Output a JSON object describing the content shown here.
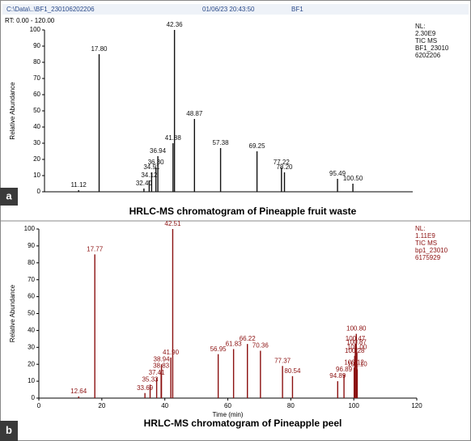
{
  "chart_data": [
    {
      "type": "spectrum",
      "panel": "a",
      "header": [
        "C:\\Data\\..\\BF1_230106202206",
        "01/06/23 20:43:50",
        "BF1"
      ],
      "range_label": "RT: 0.00 - 120.00",
      "y_label": "Relative Abundance",
      "info": [
        "NL:",
        "2.30E9",
        "TIC MS",
        "BF1_23010",
        "6202206"
      ],
      "caption": "HRLC-MS chromatogram of Pineapple fruit waste",
      "color": "#111111",
      "xlim": [
        0,
        120
      ],
      "ylim": [
        0,
        100
      ],
      "yticks": [
        0,
        10,
        20,
        30,
        40,
        50,
        60,
        70,
        80,
        90,
        100
      ],
      "x": [
        11.12,
        17.8,
        32.4,
        34.12,
        34.91,
        36.3,
        36.94,
        41.88,
        42.36,
        48.87,
        57.38,
        69.25,
        77.22,
        78.2,
        95.49,
        100.5
      ],
      "x_labels": [
        "11.12",
        "17.80",
        "32.40",
        "34.12",
        "34.91",
        "36.30",
        "36.94",
        "41.88",
        "42.36",
        "48.87",
        "57.38",
        "69.25",
        "77.22",
        "78.20",
        "95.49",
        "100.50"
      ],
      "values": [
        1,
        85,
        2,
        7,
        12,
        15,
        22,
        30,
        100,
        45,
        27,
        25,
        15,
        12,
        8,
        5
      ]
    },
    {
      "type": "spectrum",
      "panel": "b",
      "y_label": "Relative Abundance",
      "x_label": "Time (min)",
      "info": [
        "NL:",
        "1.11E9",
        "TIC MS",
        "bp1_23010",
        "6175929"
      ],
      "caption": "HRLC-MS chromatogram of Pineapple peel",
      "color": "#8b1010",
      "xlim": [
        0,
        120
      ],
      "ylim": [
        0,
        100
      ],
      "xticks": [
        0,
        20,
        40,
        60,
        80,
        100,
        120
      ],
      "yticks": [
        0,
        10,
        20,
        30,
        40,
        50,
        60,
        70,
        80,
        90,
        100
      ],
      "x": [
        12.64,
        17.77,
        33.69,
        35.33,
        37.41,
        38.83,
        38.94,
        41.9,
        42.51,
        56.95,
        61.83,
        66.22,
        70.36,
        77.37,
        80.54,
        94.89,
        96.89,
        100.12,
        100.28,
        100.47,
        100.8,
        100.87,
        101.0,
        101.1
      ],
      "x_labels": [
        "12.64",
        "17.77",
        "33.69",
        "35.33",
        "37.41",
        "38.83",
        "38.94",
        "41.90",
        "42.51",
        "56.95",
        "61.83",
        "66.22",
        "70.36",
        "77.37",
        "80.54",
        "94.89",
        "96.89",
        "100.12",
        "100.28",
        "100.47",
        "100.80",
        "100.87",
        "101.00",
        "101.10"
      ],
      "values": [
        1,
        85,
        3,
        8,
        12,
        16,
        20,
        24,
        100,
        26,
        29,
        32,
        28,
        19,
        13,
        10,
        14,
        18,
        25,
        32,
        38,
        30,
        27,
        17
      ]
    }
  ]
}
